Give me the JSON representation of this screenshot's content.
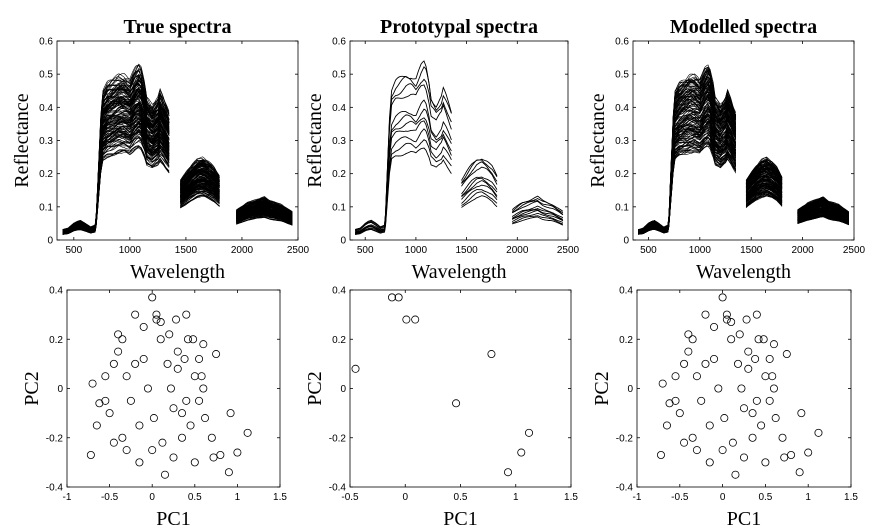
{
  "chart_data": [
    {
      "type": "line",
      "title": "True spectra",
      "xlabel": "Wavelength",
      "ylabel": "Reflectance",
      "xlim": [
        350,
        2500
      ],
      "ylim": [
        0,
        0.6
      ],
      "xticks": [
        500,
        1000,
        1500,
        2000,
        2500
      ],
      "yticks": [
        0,
        0.1,
        0.2,
        0.3,
        0.4,
        0.5,
        0.6
      ],
      "segments": [
        [
          400,
          1350
        ],
        [
          1450,
          1800
        ],
        [
          1950,
          2450
        ]
      ],
      "curve_count": 150,
      "reference_spectrum": {
        "x": [
          400,
          450,
          500,
          530,
          560,
          600,
          650,
          690,
          700,
          720,
          740,
          760,
          800,
          850,
          900,
          950,
          1000,
          1050,
          1080,
          1100,
          1130,
          1150,
          1200,
          1250,
          1270,
          1300,
          1350,
          1450,
          1500,
          1550,
          1600,
          1650,
          1700,
          1750,
          1800,
          1950,
          2000,
          2050,
          2100,
          2150,
          2200,
          2250,
          2300,
          2350,
          2400,
          2450
        ],
        "y": [
          0.028,
          0.032,
          0.045,
          0.05,
          0.052,
          0.045,
          0.035,
          0.04,
          0.07,
          0.2,
          0.33,
          0.4,
          0.42,
          0.43,
          0.44,
          0.44,
          0.43,
          0.46,
          0.47,
          0.46,
          0.42,
          0.38,
          0.36,
          0.38,
          0.4,
          0.38,
          0.34,
          0.16,
          0.18,
          0.2,
          0.215,
          0.22,
          0.21,
          0.195,
          0.17,
          0.08,
          0.09,
          0.1,
          0.105,
          0.11,
          0.115,
          0.105,
          0.1,
          0.095,
          0.085,
          0.075
        ]
      },
      "scale_range": [
        0.6,
        1.12
      ]
    },
    {
      "type": "line",
      "title": "Prototypal spectra",
      "xlabel": "Wavelength",
      "ylabel": "Reflectance",
      "xlim": [
        350,
        2500
      ],
      "ylim": [
        0,
        0.6
      ],
      "xticks": [
        500,
        1000,
        1500,
        2000,
        2500
      ],
      "yticks": [
        0,
        0.1,
        0.2,
        0.3,
        0.4,
        0.5,
        0.6
      ],
      "segments": [
        [
          400,
          1350
        ],
        [
          1450,
          1800
        ],
        [
          1950,
          2450
        ]
      ],
      "curve_count": 11,
      "reference_spectrum": {
        "x": [
          400,
          450,
          500,
          530,
          560,
          600,
          650,
          690,
          700,
          720,
          740,
          760,
          800,
          850,
          900,
          950,
          1000,
          1050,
          1080,
          1100,
          1130,
          1150,
          1200,
          1250,
          1270,
          1300,
          1350,
          1450,
          1500,
          1550,
          1600,
          1650,
          1700,
          1750,
          1800,
          1950,
          2000,
          2050,
          2100,
          2150,
          2200,
          2250,
          2300,
          2350,
          2400,
          2450
        ],
        "y": [
          0.028,
          0.032,
          0.045,
          0.05,
          0.052,
          0.045,
          0.035,
          0.04,
          0.07,
          0.2,
          0.33,
          0.4,
          0.42,
          0.43,
          0.44,
          0.44,
          0.43,
          0.46,
          0.47,
          0.46,
          0.42,
          0.38,
          0.36,
          0.38,
          0.4,
          0.38,
          0.34,
          0.16,
          0.18,
          0.2,
          0.215,
          0.22,
          0.21,
          0.195,
          0.17,
          0.08,
          0.09,
          0.1,
          0.105,
          0.11,
          0.115,
          0.105,
          0.1,
          0.095,
          0.085,
          0.075
        ]
      },
      "scales": [
        0.6,
        0.65,
        0.7,
        0.76,
        0.8,
        0.84,
        0.88,
        1.0,
        1.05,
        1.1,
        1.13
      ]
    },
    {
      "type": "line",
      "title": "Modelled spectra",
      "xlabel": "Wavelength",
      "ylabel": "Reflectance",
      "xlim": [
        350,
        2500
      ],
      "ylim": [
        0,
        0.6
      ],
      "xticks": [
        500,
        1000,
        1500,
        2000,
        2500
      ],
      "yticks": [
        0,
        0.1,
        0.2,
        0.3,
        0.4,
        0.5,
        0.6
      ],
      "segments": [
        [
          400,
          1350
        ],
        [
          1450,
          1800
        ],
        [
          1950,
          2450
        ]
      ],
      "curve_count": 150,
      "reference_spectrum": {
        "x": [
          400,
          450,
          500,
          530,
          560,
          600,
          650,
          690,
          700,
          720,
          740,
          760,
          800,
          850,
          900,
          950,
          1000,
          1050,
          1080,
          1100,
          1130,
          1150,
          1200,
          1250,
          1270,
          1300,
          1350,
          1450,
          1500,
          1550,
          1600,
          1650,
          1700,
          1750,
          1800,
          1950,
          2000,
          2050,
          2100,
          2150,
          2200,
          2250,
          2300,
          2350,
          2400,
          2450
        ],
        "y": [
          0.028,
          0.032,
          0.045,
          0.05,
          0.052,
          0.045,
          0.035,
          0.04,
          0.07,
          0.2,
          0.33,
          0.4,
          0.42,
          0.43,
          0.44,
          0.44,
          0.43,
          0.46,
          0.47,
          0.46,
          0.42,
          0.38,
          0.36,
          0.38,
          0.4,
          0.38,
          0.34,
          0.16,
          0.18,
          0.2,
          0.215,
          0.22,
          0.21,
          0.195,
          0.17,
          0.08,
          0.09,
          0.1,
          0.105,
          0.11,
          0.115,
          0.105,
          0.1,
          0.095,
          0.085,
          0.075
        ]
      },
      "scale_range": [
        0.6,
        1.12
      ]
    },
    {
      "type": "scatter",
      "xlabel": "PC1",
      "ylabel": "PC2",
      "xlim": [
        -1,
        1.5
      ],
      "ylim": [
        -0.4,
        0.4
      ],
      "xticks": [
        -1,
        -0.5,
        0,
        0.5,
        1,
        1.5
      ],
      "yticks": [
        -0.4,
        -0.2,
        0,
        0.2,
        0.4
      ],
      "marker": "open-circle",
      "x": [
        -0.7,
        -0.72,
        -0.62,
        -0.5,
        -0.45,
        -0.55,
        -0.35,
        -0.3,
        -0.2,
        -0.15,
        -0.1,
        0.0,
        0.05,
        0.1,
        0.15,
        0.2,
        0.25,
        0.3,
        0.35,
        0.4,
        0.45,
        0.5,
        0.55,
        0.6,
        0.7,
        0.75,
        0.8,
        0.9,
        1.0,
        1.12,
        0.92,
        -0.05,
        0.02,
        -0.25,
        -0.4,
        0.3,
        0.35,
        0.55,
        0.6,
        0.72,
        -0.65,
        -0.45,
        -0.3,
        -0.1,
        0.12,
        0.18,
        0.28,
        0.4,
        0.48,
        0.62,
        -0.35,
        -0.2,
        0.0,
        0.1,
        0.22,
        0.38,
        0.5,
        -0.55,
        -0.4,
        -0.15,
        0.05,
        0.25,
        0.42,
        0.58
      ],
      "y": [
        0.02,
        -0.27,
        -0.06,
        -0.1,
        0.1,
        0.05,
        0.2,
        -0.25,
        0.3,
        -0.3,
        0.25,
        0.37,
        0.28,
        0.27,
        -0.35,
        0.22,
        -0.28,
        0.15,
        -0.2,
        0.3,
        -0.15,
        0.05,
        -0.05,
        0.18,
        -0.2,
        0.14,
        -0.27,
        -0.34,
        -0.26,
        -0.18,
        -0.1,
        0.0,
        -0.12,
        -0.05,
        0.15,
        0.08,
        -0.1,
        0.12,
        0.0,
        -0.28,
        -0.15,
        -0.22,
        0.05,
        0.12,
        -0.22,
        0.1,
        0.28,
        -0.05,
        0.2,
        -0.12,
        -0.2,
        0.1,
        -0.25,
        0.2,
        0.0,
        0.12,
        -0.3,
        -0.05,
        0.22,
        -0.15,
        0.3,
        -0.08,
        0.2,
        0.05
      ]
    },
    {
      "type": "scatter",
      "xlabel": "PC1",
      "ylabel": "PC2",
      "xlim": [
        -0.5,
        1.5
      ],
      "ylim": [
        -0.4,
        0.4
      ],
      "xticks": [
        -0.5,
        0,
        0.5,
        1,
        1.5
      ],
      "yticks": [
        -0.4,
        -0.2,
        0,
        0.2,
        0.4
      ],
      "marker": "open-circle",
      "x": [
        -0.45,
        -0.12,
        -0.06,
        0.01,
        0.09,
        0.46,
        0.78,
        1.05,
        1.12,
        0.93
      ],
      "y": [
        0.08,
        0.37,
        0.37,
        0.28,
        0.28,
        -0.06,
        0.14,
        -0.26,
        -0.18,
        -0.34
      ]
    },
    {
      "type": "scatter",
      "xlabel": "PC1",
      "ylabel": "PC2",
      "xlim": [
        -1,
        1.5
      ],
      "ylim": [
        -0.4,
        0.4
      ],
      "xticks": [
        -1,
        -0.5,
        0,
        0.5,
        1,
        1.5
      ],
      "yticks": [
        -0.4,
        -0.2,
        0,
        0.2,
        0.4
      ],
      "marker": "open-circle",
      "x": [
        -0.7,
        -0.72,
        -0.62,
        -0.5,
        -0.45,
        -0.55,
        -0.35,
        -0.3,
        -0.2,
        -0.15,
        -0.1,
        0.0,
        0.05,
        0.1,
        0.15,
        0.2,
        0.25,
        0.3,
        0.35,
        0.4,
        0.45,
        0.5,
        0.55,
        0.6,
        0.7,
        0.75,
        0.8,
        0.9,
        1.0,
        1.12,
        0.92,
        -0.05,
        0.02,
        -0.25,
        -0.4,
        0.3,
        0.35,
        0.55,
        0.6,
        0.72,
        -0.65,
        -0.45,
        -0.3,
        -0.1,
        0.12,
        0.18,
        0.28,
        0.4,
        0.48,
        0.62,
        -0.35,
        -0.2,
        0.0,
        0.1,
        0.22,
        0.38,
        0.5,
        -0.55,
        -0.4,
        -0.15,
        0.05,
        0.25,
        0.42,
        0.58
      ],
      "y": [
        0.02,
        -0.27,
        -0.06,
        -0.1,
        0.1,
        0.05,
        0.2,
        -0.25,
        0.3,
        -0.3,
        0.25,
        0.37,
        0.28,
        0.27,
        -0.35,
        0.22,
        -0.28,
        0.15,
        -0.2,
        0.3,
        -0.15,
        0.05,
        -0.05,
        0.18,
        -0.2,
        0.14,
        -0.27,
        -0.34,
        -0.26,
        -0.18,
        -0.1,
        0.0,
        -0.12,
        -0.05,
        0.15,
        0.08,
        -0.1,
        0.12,
        0.0,
        -0.28,
        -0.15,
        -0.22,
        0.05,
        0.12,
        -0.22,
        0.1,
        0.28,
        -0.05,
        0.2,
        -0.12,
        -0.2,
        0.1,
        -0.25,
        0.2,
        0.0,
        0.12,
        -0.3,
        -0.05,
        0.22,
        -0.15,
        0.3,
        -0.08,
        0.2,
        0.05
      ]
    }
  ]
}
